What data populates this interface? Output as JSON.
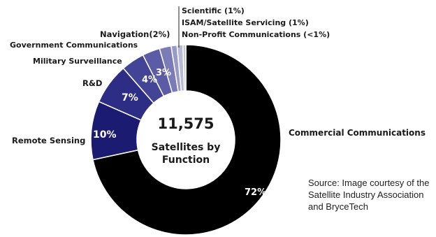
{
  "chart_data": {
    "type": "pie",
    "variant": "donut",
    "center_value": "11,575",
    "center_label_line1": "Satellites by",
    "center_label_line2": "Function",
    "categories": [
      "Commercial Communications",
      "Remote Sensing",
      "R&D",
      "Military Surveillance",
      "Government Communications",
      "Navigation(2%)",
      "Scientific (1%)",
      "ISAM/Satellite Servicing (1%)",
      "Non-Profit Communications (<1%)"
    ],
    "values": [
      72,
      10,
      7,
      4,
      3,
      2,
      1,
      1,
      0.5
    ],
    "slice_labels": [
      "72%",
      "10%",
      "7%",
      "4%",
      "3%",
      "",
      "",
      "",
      ""
    ],
    "colors": [
      "#000000",
      "#1b1b72",
      "#2d2d86",
      "#444496",
      "#5c5ca6",
      "#7b7bb8",
      "#9a9ac8",
      "#b8b8d8",
      "#c8c8c8"
    ]
  },
  "source_text": "Source:  Image courtesy of the Satellite Industry Association and BryceTech"
}
